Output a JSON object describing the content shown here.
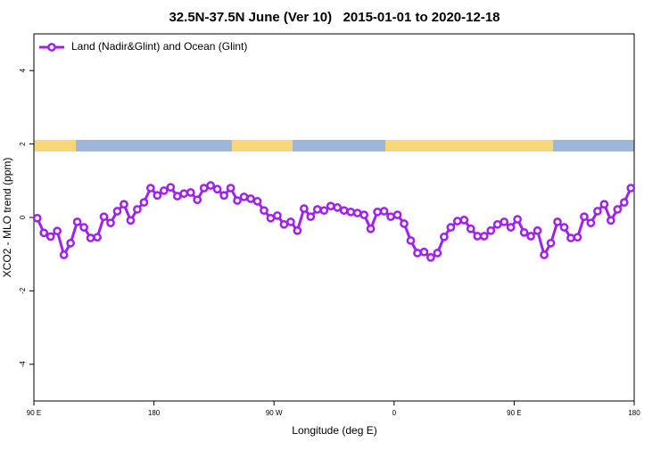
{
  "chart_data": {
    "type": "line",
    "title": "32.5N-37.5N June (Ver 10)   2015-01-01 to 2020-12-18",
    "x_label": "Longitude (deg E)",
    "y_label": "XCO2 - MLO trend (ppm)",
    "xlim": [
      90,
      540
    ],
    "xticks": [
      {
        "value": 90,
        "label": "90 E"
      },
      {
        "value": 180,
        "label": "180"
      },
      {
        "value": 270,
        "label": "90 W"
      },
      {
        "value": 360,
        "label": "0"
      },
      {
        "value": 450,
        "label": "90 E"
      },
      {
        "value": 540,
        "label": "180"
      }
    ],
    "ylim": [
      -5,
      5
    ],
    "yticks": [
      -4,
      -2,
      0,
      2,
      4
    ],
    "legend": "top-left",
    "x": [
      92.5,
      97.5,
      102.5,
      107.5,
      112.5,
      117.5,
      122.5,
      127.5,
      132.5,
      137.5,
      142.5,
      147.5,
      152.5,
      157.5,
      162.5,
      167.5,
      172.5,
      177.5,
      182.5,
      187.5,
      192.5,
      197.5,
      202.5,
      207.5,
      212.5,
      217.5,
      222.5,
      227.5,
      232.5,
      237.5,
      242.5,
      247.5,
      252.5,
      257.5,
      262.5,
      267.5,
      272.5,
      277.5,
      282.5,
      287.5,
      292.5,
      297.5,
      302.5,
      307.5,
      312.5,
      317.5,
      322.5,
      327.5,
      332.5,
      337.5,
      342.5,
      347.5,
      352.5,
      357.5,
      362.5,
      367.5,
      372.5,
      377.5,
      382.5,
      387.5,
      392.5,
      397.5,
      402.5,
      407.5,
      412.5,
      417.5,
      422.5,
      427.5,
      432.5,
      437.5,
      442.5,
      447.5,
      452.5,
      457.5,
      462.5,
      467.5,
      472.5,
      477.5,
      482.5,
      487.5,
      492.5,
      497.5,
      502.5,
      507.5,
      512.5,
      517.5,
      522.5,
      527.5,
      532.5,
      537.5
    ],
    "series": [
      {
        "name": "Land (Nadir&Glint) and Ocean (Glint)",
        "color": "#a020f0",
        "values": [
          -0.02,
          -0.42,
          -0.52,
          -0.37,
          -1.02,
          -0.7,
          -0.12,
          -0.27,
          -0.56,
          -0.54,
          0.02,
          -0.15,
          0.17,
          0.36,
          -0.08,
          0.22,
          0.41,
          0.8,
          0.6,
          0.73,
          0.82,
          0.58,
          0.65,
          0.68,
          0.48,
          0.8,
          0.87,
          0.77,
          0.6,
          0.8,
          0.46,
          0.56,
          0.51,
          0.44,
          0.19,
          -0.02,
          0.05,
          -0.19,
          -0.12,
          -0.36,
          0.24,
          0.02,
          0.22,
          0.19,
          0.31,
          0.27,
          0.19,
          0.15,
          0.12,
          0.07,
          -0.31,
          0.15,
          0.17,
          0.02,
          0.07,
          -0.17,
          -0.63,
          -0.97,
          -0.94,
          -1.09,
          -0.97,
          -0.53,
          -0.27,
          -0.1,
          -0.07,
          -0.31,
          -0.51,
          -0.51,
          -0.36,
          -0.19,
          -0.12,
          -0.27,
          -0.05,
          -0.41,
          -0.51,
          -0.36,
          -1.02,
          -0.7,
          -0.12,
          -0.27,
          -0.56,
          -0.54,
          0.02,
          -0.15,
          0.17,
          0.36,
          -0.08,
          0.22,
          0.41,
          0.8
        ]
      }
    ]
  }
}
